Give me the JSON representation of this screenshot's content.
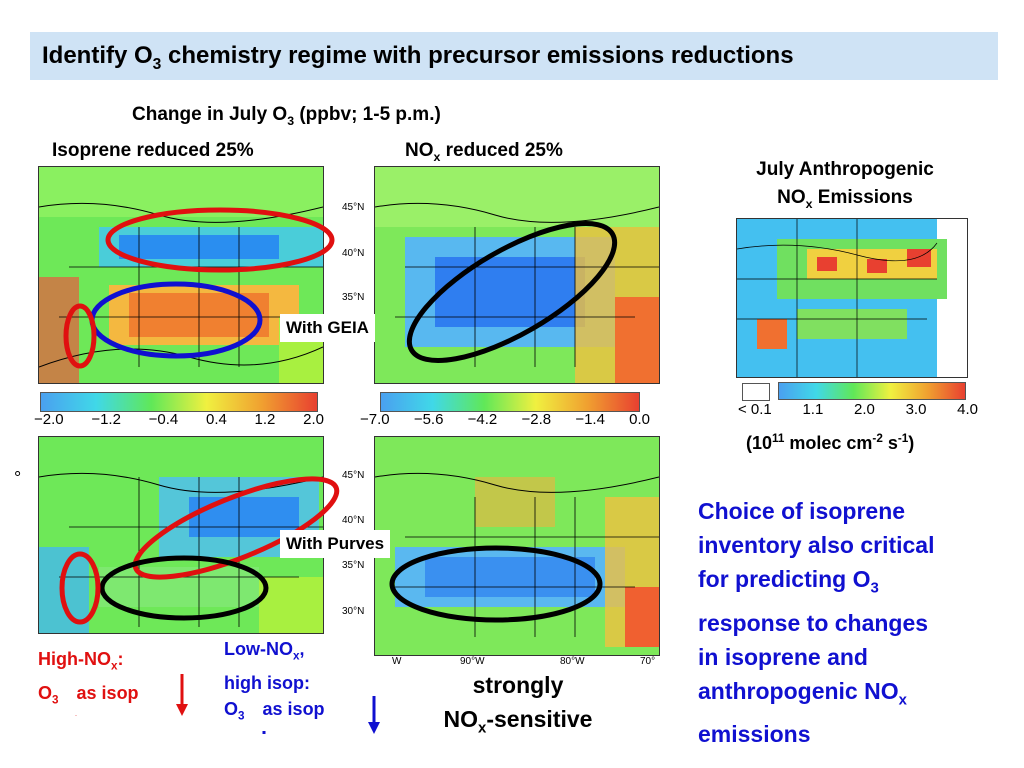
{
  "title": {
    "prefix": "Identify O",
    "sub": "3",
    "suffix": " chemistry regime with precursor emissions reductions"
  },
  "header": {
    "prefix": "Change in July O",
    "sub": "3",
    "suffix": " (ppbv; 1-5 p.m.)"
  },
  "panel_left_title": "Isoprene reduced 25%",
  "panel_right_title": {
    "prefix": "NO",
    "sub": "x",
    "suffix": " reduced 25%"
  },
  "emissions_title": {
    "line1": "July Anthropogenic",
    "line2_prefix": "NO",
    "line2_sub": "x",
    "line2_suffix": " Emissions"
  },
  "colorbar_left_ticks": [
    "−2.0",
    "−1.2",
    "−0.4",
    "0.4",
    "1.2",
    "2.0"
  ],
  "colorbar_right_ticks": [
    "−7.0",
    "−5.6",
    "−4.2",
    "−2.8",
    "−1.4",
    "0.0"
  ],
  "colorbar_emis_ticks": [
    "< 0.1",
    "1.1",
    "2.0",
    "3.0",
    "4.0"
  ],
  "emis_units": {
    "p1": "(10",
    "sup1": "11",
    "p2": " molec cm",
    "sup2": "-2",
    "p3": " s",
    "sup3": "-1",
    "p4": ")"
  },
  "lat_labels": [
    "45°N",
    "40°N",
    "35°N",
    "30°N"
  ],
  "lon_labels": [
    "W",
    "90°W",
    "80°W",
    "70°"
  ],
  "degree_mark": "°",
  "with_geia": "With GEIA",
  "with_purves": "With Purves",
  "high_nox": {
    "line1_prefix": "High-NO",
    "line1_sub": "x",
    "line1_suffix": ":",
    "line2_prefix": "O",
    "line2_sub": "3",
    "line2_suffix": "as isop"
  },
  "low_nox": {
    "line1_prefix": "Low-NO",
    "line1_sub": "x",
    "line1_suffix": ",",
    "line2": "high isop:",
    "line3_prefix": "O",
    "line3_sub": "3",
    "line3_suffix": "as isop"
  },
  "strongly": {
    "line1": "strongly",
    "line2_prefix": "NO",
    "line2_sub": "x",
    "line2_suffix": "-sensitive"
  },
  "choice_text": {
    "l1": "Choice of isoprene",
    "l2": "inventory also critical",
    "l3_prefix": "for predicting O",
    "l3_sub": "3",
    "l4": "response to changes",
    "l5": "in isoprene and",
    "l6_prefix": "anthropogenic NO",
    "l6_sub": "x",
    "l7": "emissions"
  },
  "colors": {
    "title_bg": "#cfe3f5",
    "red": "#e01010",
    "blue": "#1010d0",
    "black": "#000000",
    "map_green": "#5ee04a"
  }
}
